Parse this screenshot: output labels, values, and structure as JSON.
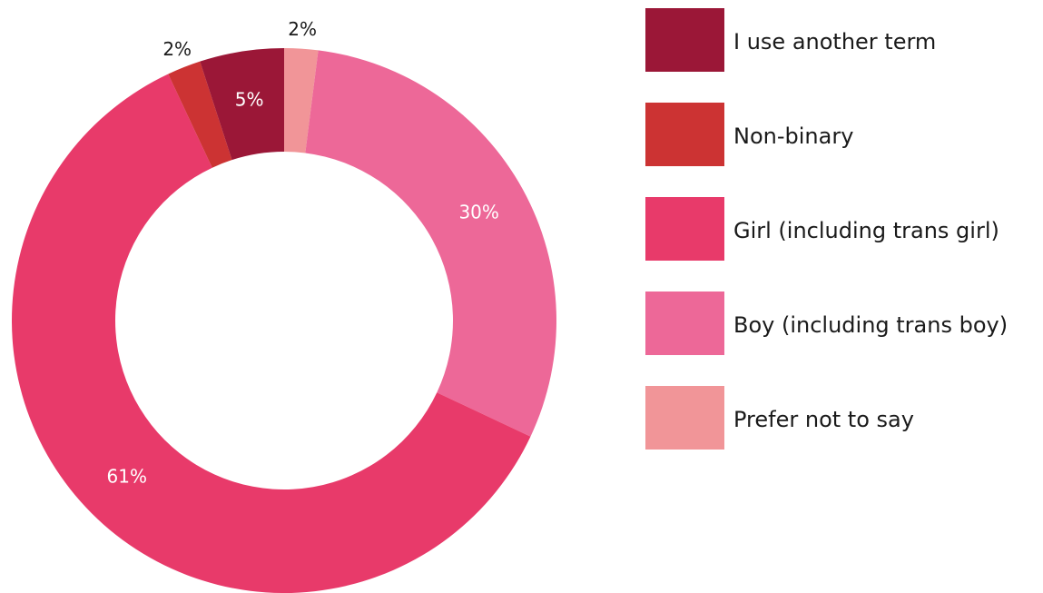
{
  "chart_data": {
    "type": "donut",
    "categories": [
      "I use another term",
      "Non-binary",
      "Girl (including trans girl)",
      "Boy (including trans boy)",
      "Prefer not to say"
    ],
    "values": [
      5,
      2,
      61,
      30,
      2
    ],
    "value_labels": [
      "5%",
      "2%",
      "61%",
      "30%",
      "2%"
    ],
    "colors": [
      "#9b1737",
      "#cc3333",
      "#e83a6a",
      "#ed6898",
      "#f19598"
    ]
  }
}
